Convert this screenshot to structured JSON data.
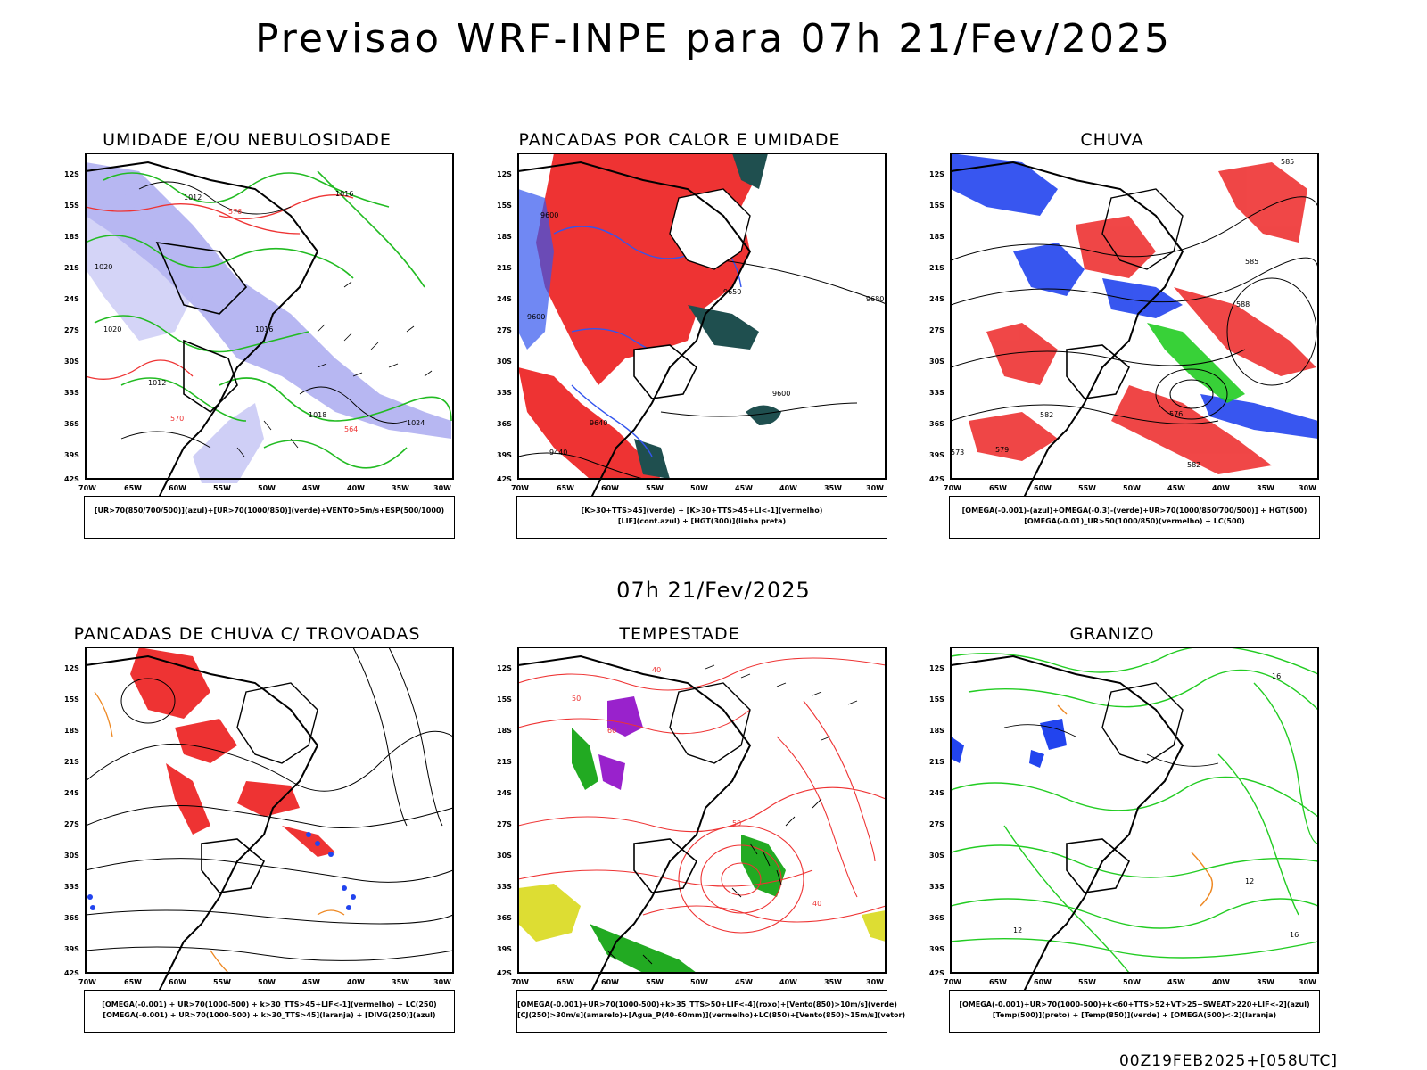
{
  "header": {
    "title": "Previsao WRF-INPE  para 07h 21/Fev/2025",
    "mid_title": "07h 21/Fev/2025",
    "footer": "00Z19FEB2025+[058UTC]"
  },
  "axes": {
    "lat_labels": [
      "12S",
      "15S",
      "18S",
      "21S",
      "24S",
      "27S",
      "30S",
      "33S",
      "36S",
      "39S",
      "42S"
    ],
    "lon_labels": [
      "70W",
      "65W",
      "60W",
      "55W",
      "50W",
      "45W",
      "40W",
      "35W",
      "30W"
    ]
  },
  "panels": [
    {
      "title": "UMIDADE E/OU NEBULOSIDADE",
      "legend": [
        "[UR>70(850/700/500)](azul)+[UR>70(1000/850)](verde)+VENTO>5m/s+ESP(500/1000)"
      ],
      "contour_labels": [
        "1012",
        "1016",
        "1020",
        "1024",
        "576",
        "570",
        "564",
        "1016",
        "1020",
        "1012",
        "1018"
      ],
      "colors": {
        "blue": "#9999ee",
        "green": "#22bb22",
        "red": "#ee3333"
      }
    },
    {
      "title": "PANCADAS POR CALOR E UMIDADE",
      "legend": [
        "[K>30+TTS>45](verde) + [K>30+TTS>45+LI<-1](vermelho)",
        "[LIF](cont.azul) + [HGT(300)](linha preta)"
      ],
      "contour_labels": [
        "9600",
        "9680",
        "9600",
        "9640",
        "9440",
        "9600",
        "9650"
      ],
      "colors": {
        "red": "#ee3333",
        "teal": "#1f4f4f",
        "blue": "#3355ee"
      }
    },
    {
      "title": "CHUVA",
      "legend": [
        "[OMEGA(-0.001)-(azul)+OMEGA(-0.3)-(verde)+UR>70(1000/850/700/500)] + HGT(500)",
        "[OMEGA(-0.01)_UR>50(1000/850)(vermelho) + LC(500)"
      ],
      "contour_labels": [
        "585",
        "588",
        "582",
        "576",
        "573",
        "579",
        "582",
        "585"
      ],
      "colors": {
        "red": "#ee3333",
        "blue": "#2244ee",
        "green": "#22cc22"
      }
    },
    {
      "title": "PANCADAS DE CHUVA C/ TROVOADAS",
      "legend": [
        "[OMEGA(-0.001) + UR>70(1000-500) + k>30_TTS>45+LIF<-1](vermelho) + LC(250)",
        "[OMEGA(-0.001) + UR>70(1000-500) + k>30_TTS>45](laranja) + [DIVG(250)](azul)"
      ],
      "contour_labels": [],
      "colors": {
        "red": "#ee3333",
        "orange": "#ee8822",
        "blue": "#2244ee"
      }
    },
    {
      "title": "TEMPESTADE",
      "legend": [
        "[OMEGA(-0.001)+UR>70(1000-500)+k>35_TTS>50+LIF<-4](roxo)+[Vento(850)>10m/s](verde)",
        "[CJ(250)>30m/s](amarelo)+[Agua_P(40-60mm)](vermelho)+LC(850)+[Vento(850)>15m/s](vetor)"
      ],
      "contour_labels": [
        "50",
        "40",
        "60",
        "50",
        "40"
      ],
      "colors": {
        "red": "#ee3333",
        "green": "#22aa22",
        "yellow": "#dddd33",
        "purple": "#9922cc"
      }
    },
    {
      "title": "GRANIZO",
      "legend": [
        "[OMEGA(-0.001)+UR>70(1000-500)+k<60+TTS>52+VT>25+SWEAT>220+LIF<-2](azul)",
        "[Temp(500)](preto) + [Temp(850)](verde) + [OMEGA(500)<-2](laranja)"
      ],
      "contour_labels": [
        "16",
        "12",
        "12",
        "16"
      ],
      "colors": {
        "green": "#22cc22",
        "blue": "#2244ee",
        "orange": "#ee8822"
      }
    }
  ]
}
